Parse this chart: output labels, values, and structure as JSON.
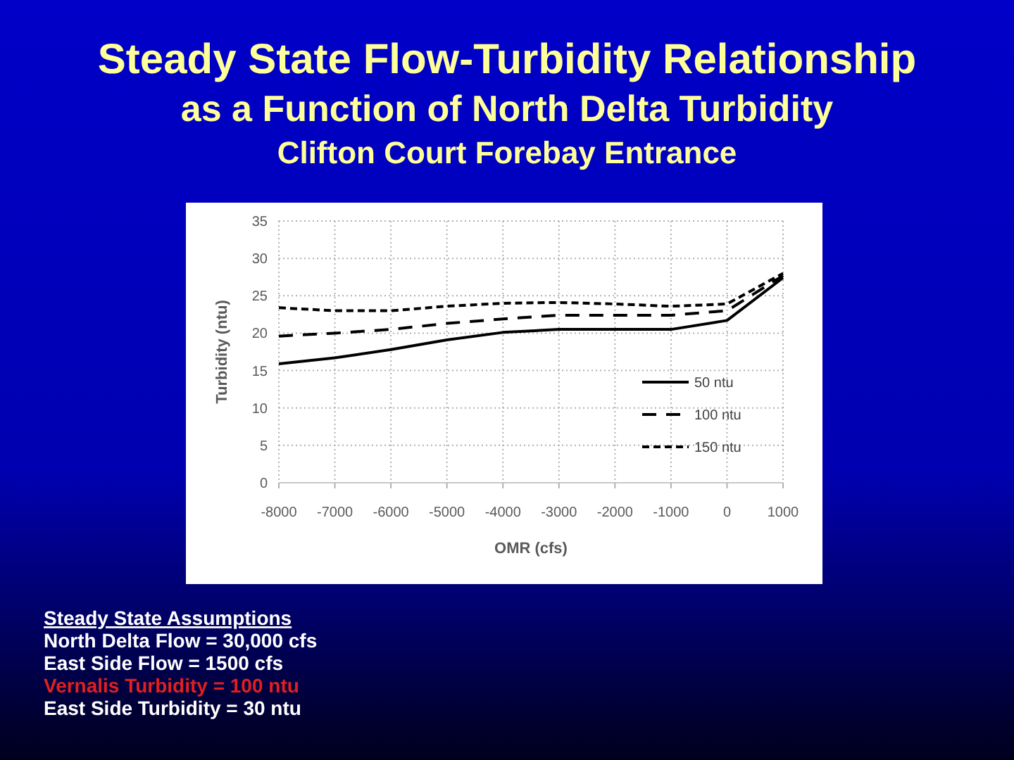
{
  "chart_data": {
    "type": "line",
    "title": "Steady State Flow-Turbidity Relationship",
    "subtitle": "as a Function of North Delta Turbidity\nClifton Court Forebay Entrance",
    "xlabel": "OMR (cfs)",
    "ylabel": "Turbidity (ntu)",
    "x": [
      -8000,
      -7000,
      -6000,
      -5000,
      -4000,
      -3000,
      -2000,
      -1000,
      0,
      1000
    ],
    "series": [
      {
        "name": "50 ntu",
        "color": "#000000",
        "line_style": "solid",
        "values": [
          15.9,
          16.7,
          17.8,
          19.1,
          20.1,
          20.5,
          20.5,
          20.5,
          21.7,
          27.4
        ]
      },
      {
        "name": "100 ntu",
        "color": "#000000",
        "line_style": "dashed",
        "values": [
          19.6,
          20.0,
          20.5,
          21.3,
          21.9,
          22.4,
          22.4,
          22.4,
          23.0,
          27.7
        ]
      },
      {
        "name": "150 ntu",
        "color": "#000000",
        "line_style": "dotted",
        "values": [
          23.4,
          23.0,
          23.0,
          23.6,
          24.0,
          24.1,
          23.9,
          23.6,
          23.9,
          28.0
        ]
      }
    ],
    "xlim": [
      -8000,
      1000
    ],
    "xticks": [
      -8000,
      -7000,
      -6000,
      -5000,
      -4000,
      -3000,
      -2000,
      -1000,
      0,
      1000
    ],
    "ylim": [
      0,
      35
    ],
    "yticks": [
      0,
      5,
      10,
      15,
      20,
      25,
      30,
      35
    ],
    "grid": true,
    "legend": "bottom right",
    "marker": "none",
    "annotations": [
      "Steady State Assumptions",
      "North Delta Flow = 30,000 cfs",
      "East Side Flow = 1500 cfs",
      "Vernalis Turbidity = 100 ntu",
      "East Side Turbidity = 30 ntu"
    ]
  }
}
